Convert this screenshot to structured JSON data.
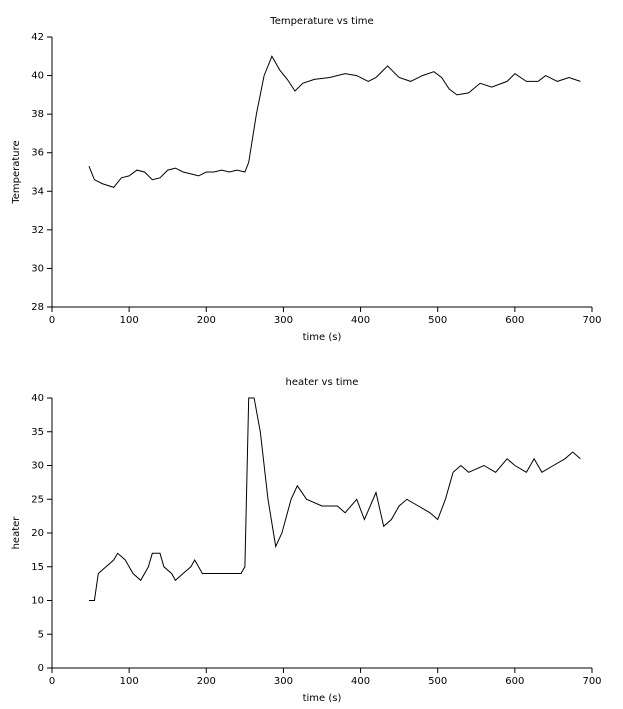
{
  "chart_data": [
    {
      "type": "line",
      "title": "Temperature vs time",
      "x_label": "time (s)",
      "y_label": "Temperature",
      "color": "#000000",
      "x": [
        48,
        55,
        65,
        80,
        90,
        100,
        110,
        120,
        130,
        140,
        150,
        160,
        170,
        180,
        190,
        200,
        210,
        220,
        230,
        240,
        250,
        255,
        265,
        275,
        285,
        295,
        305,
        315,
        325,
        340,
        360,
        380,
        395,
        410,
        420,
        435,
        450,
        465,
        480,
        495,
        505,
        515,
        525,
        540,
        555,
        570,
        590,
        600,
        615,
        630,
        640,
        655,
        670,
        685
      ],
      "values": [
        35.3,
        34.6,
        34.4,
        34.2,
        34.7,
        34.8,
        35.1,
        35.0,
        34.6,
        34.7,
        35.1,
        35.2,
        35.0,
        34.9,
        34.8,
        35.0,
        35.0,
        35.1,
        35.0,
        35.1,
        35.0,
        35.5,
        38.0,
        40.0,
        41.0,
        40.3,
        39.8,
        39.2,
        39.6,
        39.8,
        39.9,
        40.1,
        40.0,
        39.7,
        39.9,
        40.5,
        39.9,
        39.7,
        40.0,
        40.2,
        39.9,
        39.3,
        39.0,
        39.1,
        39.6,
        39.4,
        39.7,
        40.1,
        39.7,
        39.7,
        40.0,
        39.7,
        39.9,
        39.7
      ],
      "xlim": [
        0,
        700
      ],
      "xticks": [
        0,
        100,
        200,
        300,
        400,
        500,
        600,
        700
      ],
      "ylim": [
        28,
        42
      ],
      "yticks": [
        28,
        30,
        32,
        34,
        36,
        38,
        40,
        42
      ]
    },
    {
      "type": "line",
      "title": "heater vs time",
      "x_label": "time (s)",
      "y_label": "heater",
      "color": "#000000",
      "x": [
        48,
        55,
        60,
        70,
        80,
        85,
        95,
        105,
        115,
        125,
        130,
        140,
        145,
        155,
        160,
        170,
        180,
        185,
        195,
        245,
        250,
        255,
        262,
        270,
        280,
        290,
        298,
        310,
        318,
        330,
        350,
        370,
        380,
        395,
        405,
        420,
        430,
        440,
        450,
        460,
        475,
        490,
        500,
        510,
        520,
        530,
        540,
        560,
        575,
        590,
        600,
        615,
        625,
        635,
        650,
        665,
        675,
        685
      ],
      "values": [
        10,
        10,
        14,
        15,
        16,
        17,
        16,
        14,
        13,
        15,
        17,
        17,
        15,
        14,
        13,
        14,
        15,
        16,
        14,
        14,
        15,
        40,
        40,
        35,
        25,
        18,
        20,
        25,
        27,
        25,
        24,
        24,
        23,
        25,
        22,
        26,
        21,
        22,
        24,
        25,
        24,
        23,
        22,
        25,
        29,
        30,
        29,
        30,
        29,
        31,
        30,
        29,
        31,
        29,
        30,
        31,
        32,
        31
      ],
      "xlim": [
        0,
        700
      ],
      "xticks": [
        0,
        100,
        200,
        300,
        400,
        500,
        600,
        700
      ],
      "ylim": [
        0,
        40
      ],
      "yticks": [
        0,
        5,
        10,
        15,
        20,
        25,
        30,
        35,
        40
      ]
    }
  ]
}
